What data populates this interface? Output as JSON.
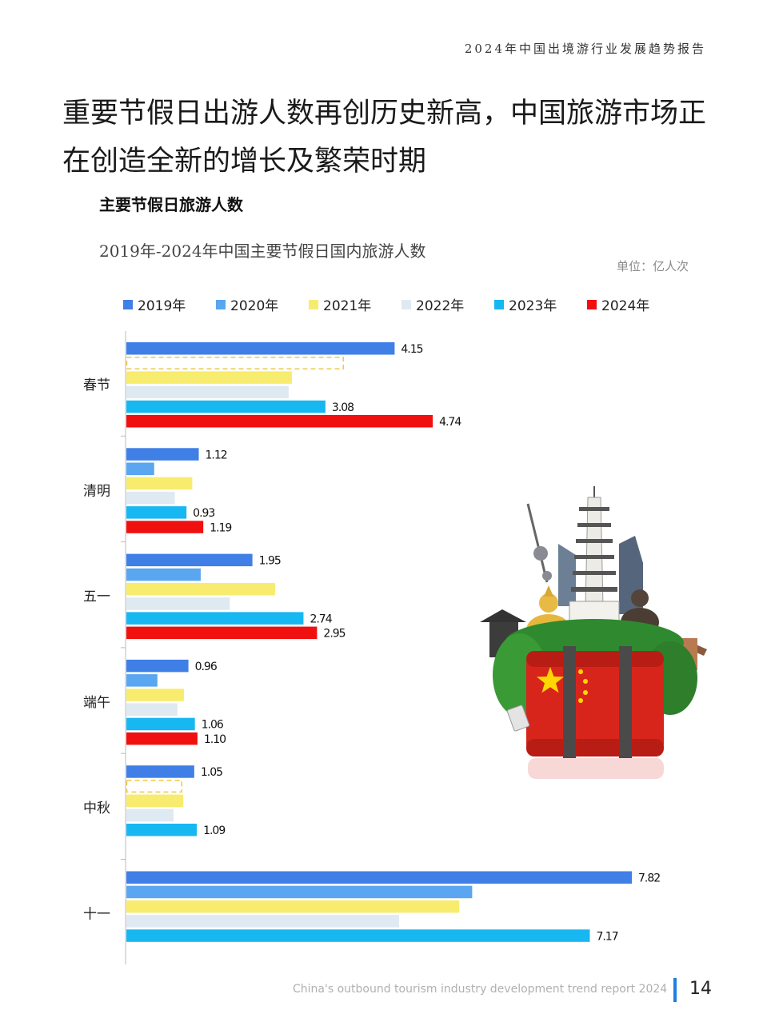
{
  "header": {
    "report_title": "2024年中国出境游行业发展趋势报告"
  },
  "headline": "重要节假日出游人数再创历史新高，中国旅游市场正在创造全新的增长及繁荣时期",
  "section_title": "主要节假日旅游人数",
  "chart_data": {
    "type": "bar",
    "orientation": "horizontal",
    "title": "2019年-2024年中国主要节假日国内旅游人数",
    "unit": "单位：亿人次",
    "categories": [
      "春节",
      "清明",
      "五一",
      "端午",
      "中秋",
      "十一"
    ],
    "legend_position": "top",
    "grid": false,
    "xlim": [
      0,
      8
    ],
    "series": [
      {
        "name": "2019年",
        "color": "#3f7fe6",
        "values": [
          4.15,
          1.12,
          1.95,
          0.96,
          1.05,
          7.82
        ],
        "labels": [
          "4.15",
          "1.12",
          "1.95",
          "0.96",
          "1.05",
          "7.82"
        ]
      },
      {
        "name": "2020年",
        "color": "#5aa6f0",
        "values": [
          null,
          0.43,
          1.15,
          0.48,
          null,
          5.35
        ],
        "labels": [
          null,
          null,
          null,
          null,
          null,
          null
        ]
      },
      {
        "name": "2021年",
        "color": "#f7ec6e",
        "values": [
          2.56,
          1.02,
          2.3,
          0.89,
          0.88,
          5.15
        ],
        "labels": [
          null,
          null,
          null,
          null,
          null,
          null
        ]
      },
      {
        "name": "2022年",
        "color": "#dfe9f1",
        "values": [
          2.51,
          0.75,
          1.6,
          0.79,
          0.73,
          4.22
        ],
        "labels": [
          null,
          null,
          null,
          null,
          null,
          null
        ]
      },
      {
        "name": "2023年",
        "color": "#17b7f2",
        "values": [
          3.08,
          0.93,
          2.74,
          1.06,
          1.09,
          7.17
        ],
        "labels": [
          "3.08",
          "0.93",
          "2.74",
          "1.06",
          "1.09",
          "7.17"
        ]
      },
      {
        "name": "2024年",
        "color": "#f01010",
        "values": [
          4.74,
          1.19,
          2.95,
          1.1,
          null,
          null
        ],
        "labels": [
          "4.74",
          "1.19",
          "2.95",
          "1.10",
          null,
          null
        ]
      }
    ],
    "placeholders": [
      {
        "category": "春节",
        "series": "2020年",
        "value": 3.35
      },
      {
        "category": "中秋",
        "series": "2020年",
        "value": 0.85
      }
    ]
  },
  "illustration": {
    "icon": "china-travel-suitcase-landmarks-illustration",
    "colors": {
      "suitcase": "#d8251c",
      "flag_star": "#ffd700",
      "greenery": "#2f8a2f"
    }
  },
  "footer": {
    "text": "China's outbound tourism industry development trend report 2024",
    "page_number": "14",
    "accent_color": "#1f7ee0"
  }
}
